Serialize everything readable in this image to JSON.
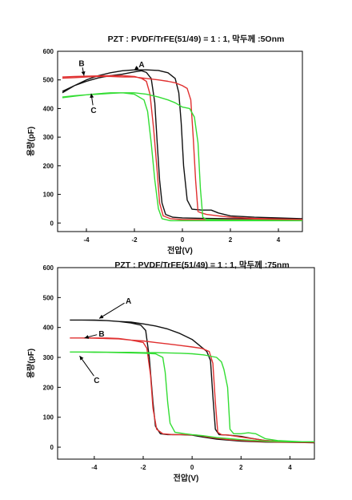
{
  "chart_data": [
    {
      "type": "line",
      "title": "PZT : PVDF/TrFE(51/49) = 1 : 1, 막두께 :5Onm",
      "xlabel": "전압(V)",
      "ylabel": "용량(pF)",
      "xlim": [
        -5.2,
        5.0
      ],
      "ylim": [
        -30,
        600
      ],
      "xticks": [
        -4,
        -2,
        0,
        2,
        4
      ],
      "yticks": [
        0,
        100,
        200,
        300,
        400,
        500,
        600
      ],
      "grid": false,
      "annotations": [
        {
          "text": "A",
          "x": -1.7,
          "y": 555,
          "ax": -2.0,
          "ay": 535
        },
        {
          "text": "B",
          "x": -4.2,
          "y": 560,
          "ax": -4.1,
          "ay": 515
        },
        {
          "text": "C",
          "x": -3.7,
          "y": 395,
          "ax": -3.8,
          "ay": 452
        }
      ],
      "series": [
        {
          "label": "A",
          "color": "#111111",
          "points": [
            [
              -5,
              455
            ],
            [
              -4.5,
              480
            ],
            [
              -4,
              495
            ],
            [
              -3.5,
              507
            ],
            [
              -3,
              515
            ],
            [
              -2.5,
              520
            ],
            [
              -2,
              528
            ],
            [
              -1.7,
              532
            ],
            [
              -1.5,
              526
            ],
            [
              -1.3,
              505
            ],
            [
              -1.15,
              420
            ],
            [
              -1.05,
              280
            ],
            [
              -0.95,
              150
            ],
            [
              -0.85,
              70
            ],
            [
              -0.7,
              30
            ],
            [
              -0.4,
              20
            ],
            [
              0,
              18
            ],
            [
              1,
              16
            ],
            [
              2,
              15
            ],
            [
              3,
              15
            ],
            [
              4,
              15
            ],
            [
              5,
              15
            ],
            [
              4,
              18
            ],
            [
              3,
              20
            ],
            [
              2,
              25
            ],
            [
              1.5,
              35
            ],
            [
              1.2,
              45
            ],
            [
              0.8,
              45
            ],
            [
              0.4,
              48
            ],
            [
              0.2,
              80
            ],
            [
              0.05,
              200
            ],
            [
              -0.05,
              350
            ],
            [
              -0.15,
              455
            ],
            [
              -0.3,
              505
            ],
            [
              -0.6,
              525
            ],
            [
              -1,
              533
            ],
            [
              -1.5,
              535
            ],
            [
              -2,
              535
            ],
            [
              -2.5,
              532
            ],
            [
              -3,
              525
            ],
            [
              -3.5,
              515
            ],
            [
              -4,
              500
            ],
            [
              -4.5,
              480
            ],
            [
              -5,
              460
            ]
          ]
        },
        {
          "label": "B",
          "color": "#e03030",
          "points": [
            [
              -5,
              510
            ],
            [
              -4.5,
              512
            ],
            [
              -4,
              513
            ],
            [
              -3.5,
              514
            ],
            [
              -3,
              515
            ],
            [
              -2.5,
              515
            ],
            [
              -2,
              512
            ],
            [
              -1.7,
              505
            ],
            [
              -1.5,
              495
            ],
            [
              -1.35,
              450
            ],
            [
              -1.2,
              330
            ],
            [
              -1.05,
              180
            ],
            [
              -0.95,
              70
            ],
            [
              -0.8,
              25
            ],
            [
              -0.5,
              15
            ],
            [
              0,
              12
            ],
            [
              1,
              12
            ],
            [
              2,
              12
            ],
            [
              3,
              12
            ],
            [
              4,
              12
            ],
            [
              5,
              12
            ],
            [
              4,
              14
            ],
            [
              3,
              16
            ],
            [
              2,
              20
            ],
            [
              1.5,
              25
            ],
            [
              1,
              30
            ],
            [
              0.8,
              35
            ],
            [
              0.65,
              40
            ],
            [
              0.55,
              150
            ],
            [
              0.45,
              300
            ],
            [
              0.35,
              430
            ],
            [
              0.2,
              470
            ],
            [
              0,
              480
            ],
            [
              -0.3,
              490
            ],
            [
              -0.6,
              495
            ],
            [
              -1,
              500
            ],
            [
              -1.5,
              505
            ],
            [
              -2,
              510
            ],
            [
              -2.5,
              510
            ],
            [
              -3,
              512
            ],
            [
              -3.5,
              512
            ],
            [
              -4,
              510
            ],
            [
              -4.5,
              508
            ],
            [
              -5,
              506
            ]
          ]
        },
        {
          "label": "C",
          "color": "#33dd33",
          "points": [
            [
              -5,
              440
            ],
            [
              -4.5,
              445
            ],
            [
              -4,
              448
            ],
            [
              -3.5,
              450
            ],
            [
              -3,
              453
            ],
            [
              -2.5,
              455
            ],
            [
              -2,
              450
            ],
            [
              -1.6,
              430
            ],
            [
              -1.45,
              390
            ],
            [
              -1.3,
              280
            ],
            [
              -1.15,
              150
            ],
            [
              -1.0,
              50
            ],
            [
              -0.85,
              15
            ],
            [
              -0.5,
              8
            ],
            [
              0,
              8
            ],
            [
              1,
              8
            ],
            [
              2,
              8
            ],
            [
              3,
              8
            ],
            [
              4,
              8
            ],
            [
              5,
              8
            ],
            [
              4,
              9
            ],
            [
              3,
              10
            ],
            [
              2,
              10
            ],
            [
              1,
              12
            ],
            [
              0.85,
              20
            ],
            [
              0.75,
              120
            ],
            [
              0.65,
              280
            ],
            [
              0.5,
              370
            ],
            [
              0.3,
              400
            ],
            [
              0,
              405
            ],
            [
              -0.3,
              420
            ],
            [
              -0.6,
              430
            ],
            [
              -1,
              440
            ],
            [
              -1.5,
              450
            ],
            [
              -2,
              455
            ],
            [
              -2.5,
              455
            ],
            [
              -3,
              455
            ],
            [
              -3.5,
              452
            ],
            [
              -4,
              448
            ],
            [
              -4.5,
              443
            ],
            [
              -5,
              438
            ]
          ]
        }
      ]
    },
    {
      "type": "line",
      "title": "PZT : PVDF/TrFE(51/49) = 1 : 1, 막두께 :75nm",
      "xlabel": "전압(V)",
      "ylabel": "용량(pF)",
      "xlim": [
        -5.5,
        5.0
      ],
      "ylim": [
        -40,
        600
      ],
      "xticks": [
        -4,
        -2,
        0,
        2,
        4
      ],
      "yticks": [
        0,
        100,
        200,
        300,
        400,
        500,
        600
      ],
      "grid": false,
      "annotations": [
        {
          "text": "A",
          "x": -2.6,
          "y": 490,
          "ax": -3.8,
          "ay": 430
        },
        {
          "text": "B",
          "x": -3.7,
          "y": 380,
          "ax": -4.4,
          "ay": 365
        },
        {
          "text": "C",
          "x": -3.9,
          "y": 225,
          "ax": -4.6,
          "ay": 305
        }
      ],
      "series": [
        {
          "label": "A",
          "color": "#111111",
          "points": [
            [
              -5,
              425
            ],
            [
              -4.5,
              425
            ],
            [
              -4,
              425
            ],
            [
              -3.5,
              423
            ],
            [
              -3,
              420
            ],
            [
              -2.5,
              415
            ],
            [
              -2.1,
              408
            ],
            [
              -1.9,
              390
            ],
            [
              -1.75,
              300
            ],
            [
              -1.6,
              150
            ],
            [
              -1.5,
              70
            ],
            [
              -1.3,
              45
            ],
            [
              -1,
              42
            ],
            [
              -0.5,
              42
            ],
            [
              0,
              40
            ],
            [
              0.5,
              33
            ],
            [
              1,
              27
            ],
            [
              2,
              20
            ],
            [
              3,
              17
            ],
            [
              4,
              16
            ],
            [
              5,
              15
            ],
            [
              4,
              18
            ],
            [
              3,
              22
            ],
            [
              2.4,
              30
            ],
            [
              2,
              36
            ],
            [
              1.5,
              40
            ],
            [
              1.1,
              42
            ],
            [
              0.95,
              60
            ],
            [
              0.85,
              170
            ],
            [
              0.75,
              290
            ],
            [
              0.6,
              320
            ],
            [
              0.3,
              340
            ],
            [
              0,
              360
            ],
            [
              -0.5,
              380
            ],
            [
              -1,
              395
            ],
            [
              -1.5,
              405
            ],
            [
              -2,
              412
            ],
            [
              -2.5,
              418
            ],
            [
              -3,
              420
            ],
            [
              -3.5,
              423
            ],
            [
              -4,
              424
            ],
            [
              -4.5,
              425
            ],
            [
              -5,
              425
            ]
          ]
        },
        {
          "label": "B",
          "color": "#e03030",
          "points": [
            [
              -5,
              365
            ],
            [
              -4.5,
              365
            ],
            [
              -4,
              365
            ],
            [
              -3.5,
              365
            ],
            [
              -3,
              363
            ],
            [
              -2.5,
              358
            ],
            [
              -2,
              350
            ],
            [
              -1.85,
              330
            ],
            [
              -1.7,
              240
            ],
            [
              -1.6,
              130
            ],
            [
              -1.45,
              60
            ],
            [
              -1.2,
              45
            ],
            [
              -0.8,
              42
            ],
            [
              -0.3,
              42
            ],
            [
              0.2,
              40
            ],
            [
              0.7,
              33
            ],
            [
              1.5,
              25
            ],
            [
              2.5,
              20
            ],
            [
              3.5,
              17
            ],
            [
              5,
              16
            ],
            [
              4,
              18
            ],
            [
              3,
              22
            ],
            [
              2.5,
              28
            ],
            [
              2,
              34
            ],
            [
              1.5,
              40
            ],
            [
              1.2,
              42
            ],
            [
              1.05,
              50
            ],
            [
              0.95,
              150
            ],
            [
              0.85,
              280
            ],
            [
              0.7,
              320
            ],
            [
              0.4,
              330
            ],
            [
              0,
              335
            ],
            [
              -0.5,
              340
            ],
            [
              -1,
              345
            ],
            [
              -1.5,
              350
            ],
            [
              -2,
              355
            ],
            [
              -2.5,
              358
            ],
            [
              -3,
              362
            ],
            [
              -3.5,
              363
            ],
            [
              -4,
              364
            ],
            [
              -4.5,
              365
            ],
            [
              -5,
              365
            ]
          ]
        },
        {
          "label": "C",
          "color": "#33dd33",
          "points": [
            [
              -5,
              318
            ],
            [
              -4.5,
              318
            ],
            [
              -4,
              317
            ],
            [
              -3.5,
              317
            ],
            [
              -3,
              316
            ],
            [
              -2.5,
              315
            ],
            [
              -2,
              314
            ],
            [
              -1.5,
              312
            ],
            [
              -1.2,
              300
            ],
            [
              -1.1,
              250
            ],
            [
              -1.0,
              150
            ],
            [
              -0.9,
              80
            ],
            [
              -0.7,
              50
            ],
            [
              -0.3,
              45
            ],
            [
              0,
              42
            ],
            [
              0.5,
              38
            ],
            [
              1,
              32
            ],
            [
              2,
              25
            ],
            [
              3,
              20
            ],
            [
              4,
              18
            ],
            [
              5,
              18
            ],
            [
              4.5,
              18
            ],
            [
              3.5,
              22
            ],
            [
              3,
              28
            ],
            [
              2.6,
              45
            ],
            [
              2.3,
              48
            ],
            [
              2,
              45
            ],
            [
              1.7,
              45
            ],
            [
              1.55,
              60
            ],
            [
              1.45,
              200
            ],
            [
              1.3,
              260
            ],
            [
              1.2,
              285
            ],
            [
              1,
              300
            ],
            [
              0.5,
              308
            ],
            [
              0,
              312
            ],
            [
              -0.5,
              314
            ],
            [
              -1,
              315
            ],
            [
              -1.5,
              316
            ],
            [
              -2,
              316
            ],
            [
              -2.5,
              317
            ],
            [
              -3,
              317
            ],
            [
              -4,
              318
            ],
            [
              -5,
              318
            ]
          ]
        }
      ]
    }
  ]
}
